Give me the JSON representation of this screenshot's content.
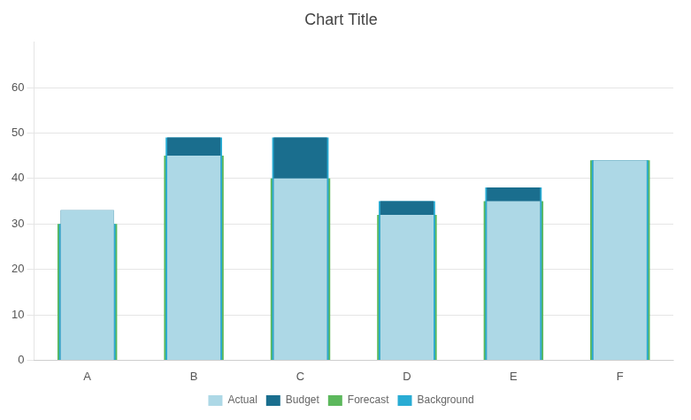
{
  "chart_data": {
    "type": "bar",
    "title": "Chart Title",
    "categories": [
      "A",
      "B",
      "C",
      "D",
      "E",
      "F"
    ],
    "series": [
      {
        "name": "Actual",
        "color": "#add8e6",
        "values": [
          33,
          45,
          40,
          32,
          35,
          44
        ]
      },
      {
        "name": "Budget",
        "color": "#1a6e8e",
        "values": [
          33,
          49,
          49,
          35,
          38,
          44
        ]
      },
      {
        "name": "Forecast",
        "color": "#5cb85c",
        "values": [
          30,
          45,
          40,
          32,
          35,
          44
        ]
      },
      {
        "name": "Background",
        "color": "#29acd4",
        "values": [
          30,
          49,
          49,
          35,
          38,
          44
        ]
      }
    ],
    "ylim": [
      0,
      70
    ],
    "yticks": [
      0,
      10,
      20,
      30,
      40,
      50,
      60
    ],
    "grid": true,
    "legend": "bottom"
  }
}
